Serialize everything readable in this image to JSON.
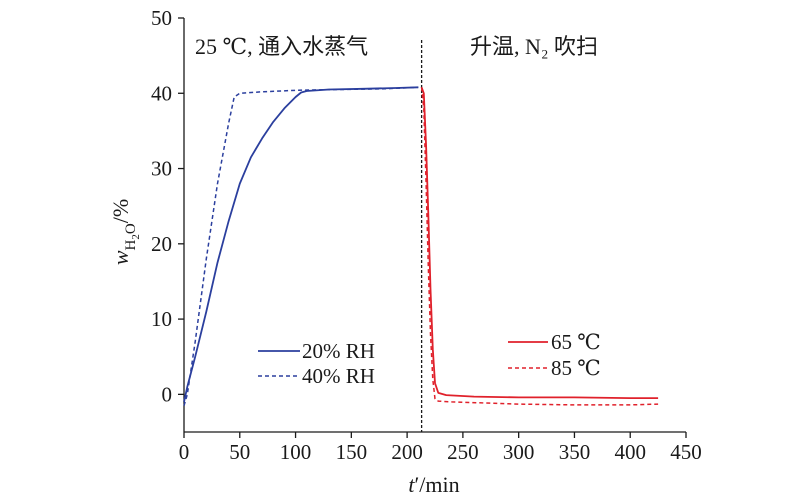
{
  "chart_data": {
    "type": "line",
    "xlabel": "t′/min",
    "ylabel": "w_H2O/%",
    "xlim": [
      0,
      450
    ],
    "ylim": [
      -5,
      50
    ],
    "x_ticks": [
      0,
      50,
      100,
      150,
      200,
      250,
      300,
      350,
      400,
      450
    ],
    "y_ticks": [
      0,
      10,
      20,
      30,
      40,
      50
    ],
    "grid": false,
    "annotations": [
      {
        "text": "25 ℃, 通入水蒸气",
        "position": "top-left"
      },
      {
        "text": "升温, N₂ 吹扫",
        "position": "top-right"
      }
    ],
    "divider": {
      "x": 213,
      "style": "dashed"
    },
    "series": [
      {
        "name": "20% RH",
        "color": "#2b3f9e",
        "dash": "solid",
        "points": [
          [
            0,
            -1
          ],
          [
            3,
            1
          ],
          [
            10,
            5
          ],
          [
            20,
            11
          ],
          [
            30,
            17.5
          ],
          [
            40,
            23
          ],
          [
            50,
            28
          ],
          [
            60,
            31.5
          ],
          [
            70,
            34
          ],
          [
            80,
            36.2
          ],
          [
            90,
            38
          ],
          [
            100,
            39.5
          ],
          [
            105,
            40.1
          ],
          [
            110,
            40.3
          ],
          [
            130,
            40.5
          ],
          [
            160,
            40.6
          ],
          [
            190,
            40.7
          ],
          [
            210,
            40.8
          ]
        ]
      },
      {
        "name": "40% RH",
        "color": "#2b3f9e",
        "dash": "dashed",
        "points": [
          [
            0,
            -1.5
          ],
          [
            3,
            0
          ],
          [
            10,
            7
          ],
          [
            20,
            18
          ],
          [
            30,
            28
          ],
          [
            40,
            36
          ],
          [
            45,
            39.5
          ],
          [
            50,
            40
          ],
          [
            70,
            40.2
          ],
          [
            100,
            40.4
          ],
          [
            140,
            40.5
          ],
          [
            180,
            40.6
          ],
          [
            210,
            40.8
          ]
        ]
      },
      {
        "name": "65 ℃",
        "color": "#e0212b",
        "dash": "solid",
        "points": [
          [
            213,
            40.8
          ],
          [
            215,
            40
          ],
          [
            217,
            33
          ],
          [
            219,
            24
          ],
          [
            221,
            14
          ],
          [
            223,
            6
          ],
          [
            225,
            1.5
          ],
          [
            228,
            0.2
          ],
          [
            235,
            -0.1
          ],
          [
            260,
            -0.3
          ],
          [
            300,
            -0.4
          ],
          [
            350,
            -0.4
          ],
          [
            400,
            -0.5
          ],
          [
            425,
            -0.5
          ]
        ]
      },
      {
        "name": "85 ℃",
        "color": "#e0212b",
        "dash": "dashed",
        "points": [
          [
            213,
            40.8
          ],
          [
            215,
            38
          ],
          [
            217,
            28
          ],
          [
            219,
            17
          ],
          [
            221,
            8
          ],
          [
            223,
            2
          ],
          [
            225,
            -0.6
          ],
          [
            228,
            -0.9
          ],
          [
            240,
            -1
          ],
          [
            300,
            -1.3
          ],
          [
            350,
            -1.4
          ],
          [
            400,
            -1.4
          ],
          [
            425,
            -1.3
          ]
        ]
      }
    ],
    "legend": [
      {
        "label": "20% RH",
        "series": "20% RH",
        "position": "lower-center-left"
      },
      {
        "label": "40% RH",
        "series": "40% RH",
        "position": "lower-center-left"
      },
      {
        "label": "65 ℃",
        "series": "65 ℃",
        "position": "lower-right"
      },
      {
        "label": "85 ℃",
        "series": "85 ℃",
        "position": "lower-right"
      }
    ]
  }
}
